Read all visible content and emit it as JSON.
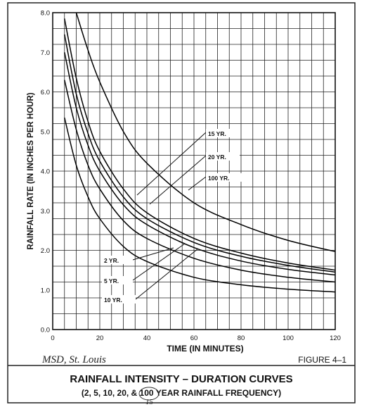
{
  "chart_data": {
    "type": "line",
    "xlabel": "TIME (IN MINUTES)",
    "ylabel": "RAINFALL RATE (IN INCHES PER HOUR)",
    "xlim": [
      0,
      120
    ],
    "ylim": [
      0,
      8
    ],
    "x_ticks": [
      "0",
      "20",
      "40",
      "60",
      "80",
      "100",
      "120"
    ],
    "y_ticks": [
      "0.0",
      "1.0",
      "2.0",
      "3.0",
      "4.0",
      "5.0",
      "6.0",
      "7.0",
      "8.0"
    ],
    "grid": true,
    "series": [
      {
        "name": "2 YR.",
        "x": [
          5,
          10,
          15,
          20,
          30,
          40,
          60,
          80,
          100,
          120
        ],
        "y": [
          5.35,
          4.15,
          3.35,
          2.8,
          2.1,
          1.72,
          1.32,
          1.13,
          1.02,
          0.95
        ]
      },
      {
        "name": "5 YR.",
        "x": [
          5,
          10,
          15,
          20,
          30,
          40,
          60,
          80,
          100,
          120
        ],
        "y": [
          6.3,
          5.05,
          4.15,
          3.55,
          2.75,
          2.3,
          1.8,
          1.5,
          1.32,
          1.2
        ]
      },
      {
        "name": "10 YR.",
        "x": [
          5,
          10,
          15,
          20,
          30,
          40,
          60,
          80,
          100,
          120
        ],
        "y": [
          7.0,
          5.6,
          4.65,
          4.0,
          3.15,
          2.65,
          2.07,
          1.73,
          1.52,
          1.38
        ]
      },
      {
        "name": "15 YR.",
        "x": [
          5,
          10,
          15,
          20,
          30,
          40,
          60,
          80,
          100,
          120
        ],
        "y": [
          7.45,
          5.95,
          4.95,
          4.25,
          3.35,
          2.8,
          2.2,
          1.85,
          1.62,
          1.45
        ]
      },
      {
        "name": "20 YR.",
        "x": [
          5,
          10,
          15,
          20,
          30,
          40,
          60,
          80,
          100,
          120
        ],
        "y": [
          7.85,
          6.35,
          5.25,
          4.5,
          3.55,
          2.95,
          2.3,
          1.93,
          1.68,
          1.5
        ]
      },
      {
        "name": "100 YR.",
        "x": [
          10,
          15,
          20,
          30,
          40,
          60,
          80,
          100,
          120
        ],
        "y": [
          8.0,
          7.05,
          6.25,
          5.0,
          4.2,
          3.2,
          2.65,
          2.25,
          1.97
        ]
      }
    ],
    "labels": {
      "2yr": "2 YR.",
      "5yr": "5 YR.",
      "10yr": "10 YR.",
      "15yr": "15 YR.",
      "20yr": "20 YR.",
      "100yr": "100 YR."
    }
  },
  "figure_label": "FIGURE 4–1",
  "handwritten_note": "MSD, St. Louis",
  "handwritten_correction": "15",
  "title": "RAINFALL INTENSITY – DURATION CURVES",
  "subtitle": "(2, 5, 10, 20, & 100 YEAR RAINFALL FREQUENCY)"
}
